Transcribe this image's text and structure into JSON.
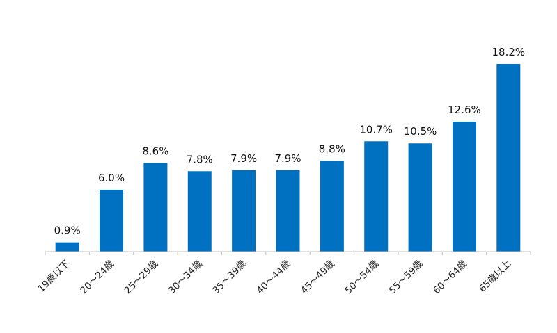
{
  "chart_data": {
    "type": "bar",
    "categories": [
      "19歳以下",
      "20～24歳",
      "25～29歳",
      "30～34歳",
      "35～39歳",
      "40～44歳",
      "45～49歳",
      "50～54歳",
      "55～59歳",
      "60～64歳",
      "65歳以上"
    ],
    "values": [
      0.9,
      6.0,
      8.6,
      7.8,
      7.9,
      7.9,
      8.8,
      10.7,
      10.5,
      12.6,
      18.2
    ],
    "value_labels": [
      "0.9%",
      "6.0%",
      "8.6%",
      "7.8%",
      "7.9%",
      "7.9%",
      "8.8%",
      "10.7%",
      "10.5%",
      "12.6%",
      "18.2%"
    ],
    "title": "",
    "xlabel": "",
    "ylabel": "",
    "ylim": [
      0,
      18.2
    ],
    "grid": false,
    "legend": "none",
    "bar_color": "#0070C0",
    "axis_color": "#BFBFBF"
  }
}
